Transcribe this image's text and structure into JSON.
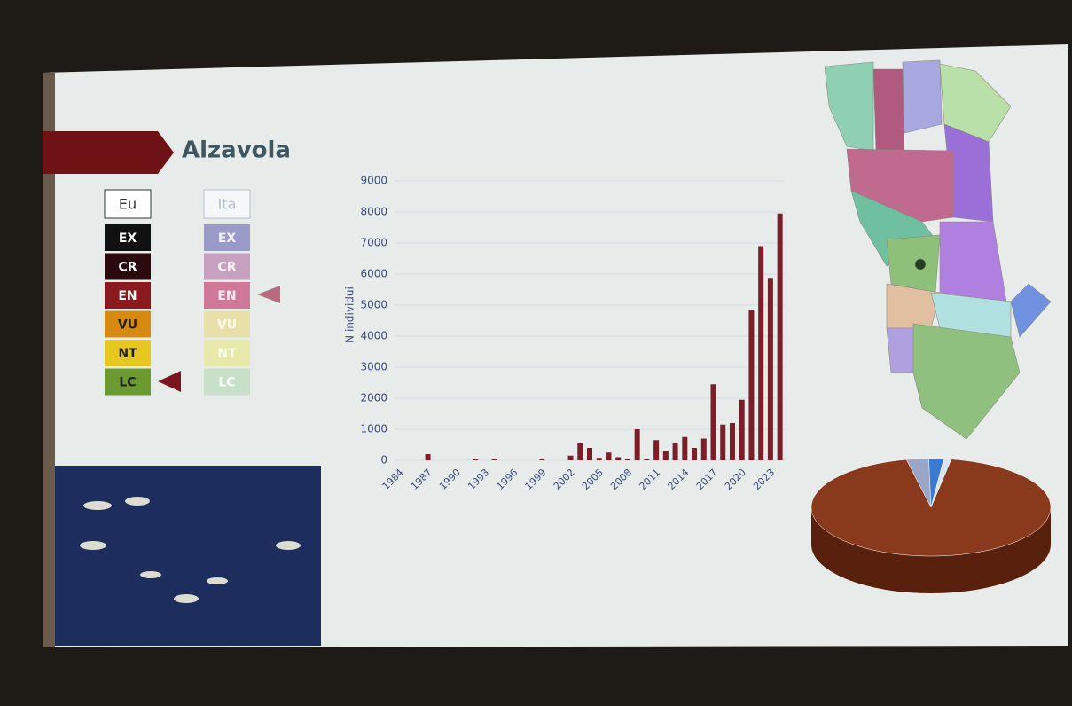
{
  "slide": {
    "title": "Alzavola",
    "iucn": {
      "eu": "Eu",
      "ita": "Ita",
      "levels": [
        "EX",
        "CR",
        "EN",
        "VU",
        "NT",
        "LC"
      ]
    }
  },
  "chart_data": [
    {
      "type": "bar",
      "y_label": "N individui",
      "color": "#7b1e2a",
      "grid": true,
      "categories": [
        "1984",
        null,
        null,
        "1987",
        null,
        null,
        "1990",
        null,
        null,
        "1993",
        null,
        null,
        "1996",
        null,
        null,
        "1999",
        null,
        null,
        "2002",
        null,
        null,
        "2005",
        null,
        null,
        "2008",
        null,
        null,
        "2011",
        null,
        null,
        "2014",
        null,
        null,
        "2017",
        null,
        null,
        "2020",
        null,
        null,
        "2023",
        null
      ],
      "values": [
        0,
        0,
        0,
        200,
        0,
        0,
        0,
        0,
        30,
        0,
        30,
        0,
        0,
        0,
        0,
        30,
        0,
        0,
        150,
        550,
        400,
        80,
        250,
        100,
        50,
        1000,
        50,
        650,
        300,
        550,
        750,
        400,
        700,
        2450,
        1150,
        1200,
        1950,
        4850,
        6900,
        5850,
        7950
      ],
      "ylim": [
        0,
        9000
      ],
      "yticks": [
        0,
        1000,
        2000,
        3000,
        4000,
        5000,
        6000,
        7000,
        8000,
        9000
      ]
    },
    {
      "type": "pie",
      "values": [
        94,
        3,
        2,
        1
      ],
      "colors": [
        "#8a3a1c",
        "#9aa6c8",
        "#3a7ad0",
        "#d8e4f0"
      ]
    }
  ]
}
